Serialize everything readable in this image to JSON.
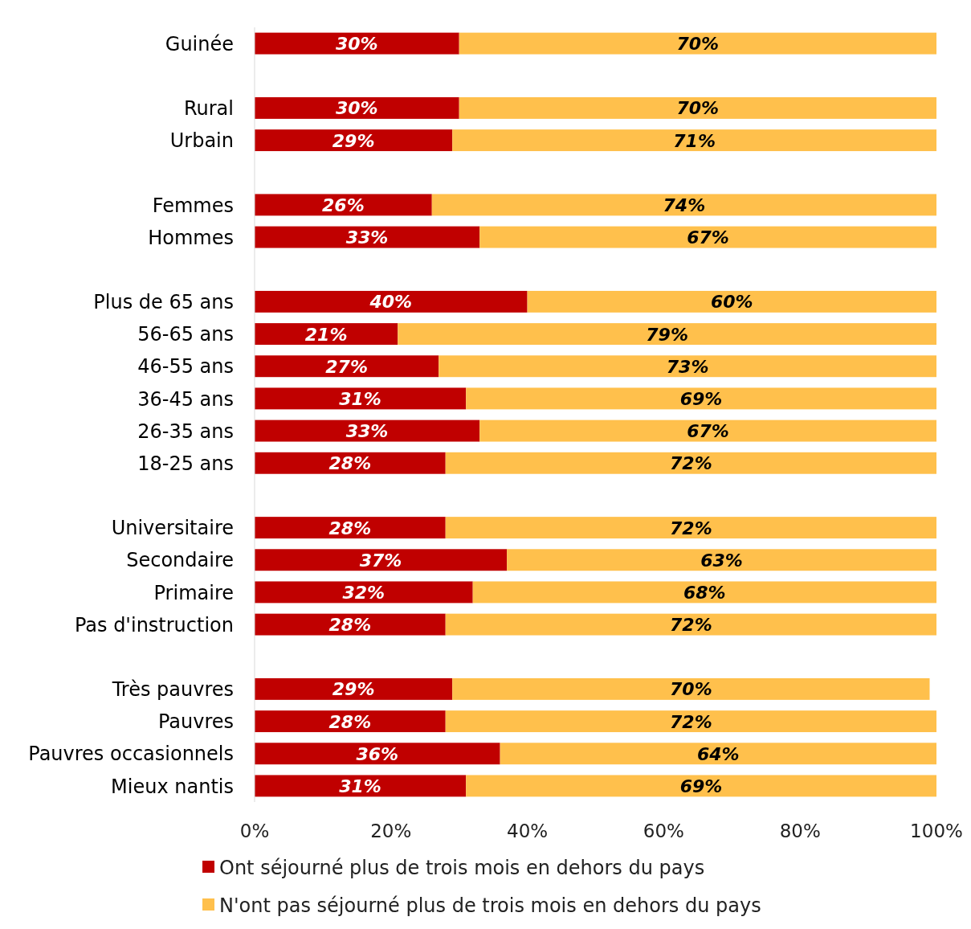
{
  "chart_data": {
    "type": "bar",
    "orientation": "horizontal",
    "stacked": true,
    "legend": "bottom",
    "grid": false,
    "categories": [
      "Guinée",
      null,
      "Rural",
      "Urbain",
      null,
      "Femmes",
      "Hommes",
      null,
      "Plus de 65 ans",
      "56-65 ans",
      "46-55 ans",
      "36-45 ans",
      "26-35 ans",
      "18-25 ans",
      null,
      "Universitaire",
      "Secondaire",
      "Primaire",
      "Pas d'instruction",
      null,
      "Très pauvres",
      "Pauvres",
      "Pauvres occasionnels",
      "Mieux nantis"
    ],
    "series": [
      {
        "name": "Ont séjourné plus de trois mois en dehors du pays",
        "color": "#c00000",
        "values": [
          30,
          null,
          30,
          29,
          null,
          26,
          33,
          null,
          40,
          21,
          27,
          31,
          33,
          28,
          null,
          28,
          37,
          32,
          28,
          null,
          29,
          28,
          36,
          31
        ],
        "value_labels": [
          "30%",
          null,
          "30%",
          "29%",
          null,
          "26%",
          "33%",
          null,
          "40%",
          "21%",
          "27%",
          "31%",
          "33%",
          "28%",
          null,
          "28%",
          "37%",
          "32%",
          "28%",
          null,
          "29%",
          "28%",
          "36%",
          "31%"
        ]
      },
      {
        "name": "N'ont pas séjourné plus de trois mois en dehors du pays",
        "color": "#ffc04c",
        "values": [
          70,
          null,
          70,
          71,
          null,
          74,
          67,
          null,
          60,
          79,
          73,
          69,
          67,
          72,
          null,
          72,
          63,
          68,
          72,
          null,
          70,
          72,
          64,
          69
        ],
        "value_labels": [
          "70%",
          null,
          "70%",
          "71%",
          null,
          "74%",
          "67%",
          null,
          "60%",
          "79%",
          "73%",
          "69%",
          "67%",
          "72%",
          null,
          "72%",
          "63%",
          "68%",
          "72%",
          null,
          "70%",
          "72%",
          "64%",
          "69%"
        ]
      }
    ],
    "xlim": [
      0,
      100
    ],
    "xticks": [
      {
        "value": 0,
        "label": "0%"
      },
      {
        "value": 20,
        "label": "20%"
      },
      {
        "value": 40,
        "label": "40%"
      },
      {
        "value": 60,
        "label": "60%"
      },
      {
        "value": 80,
        "label": "80%"
      },
      {
        "value": 100,
        "label": "100%"
      }
    ]
  }
}
